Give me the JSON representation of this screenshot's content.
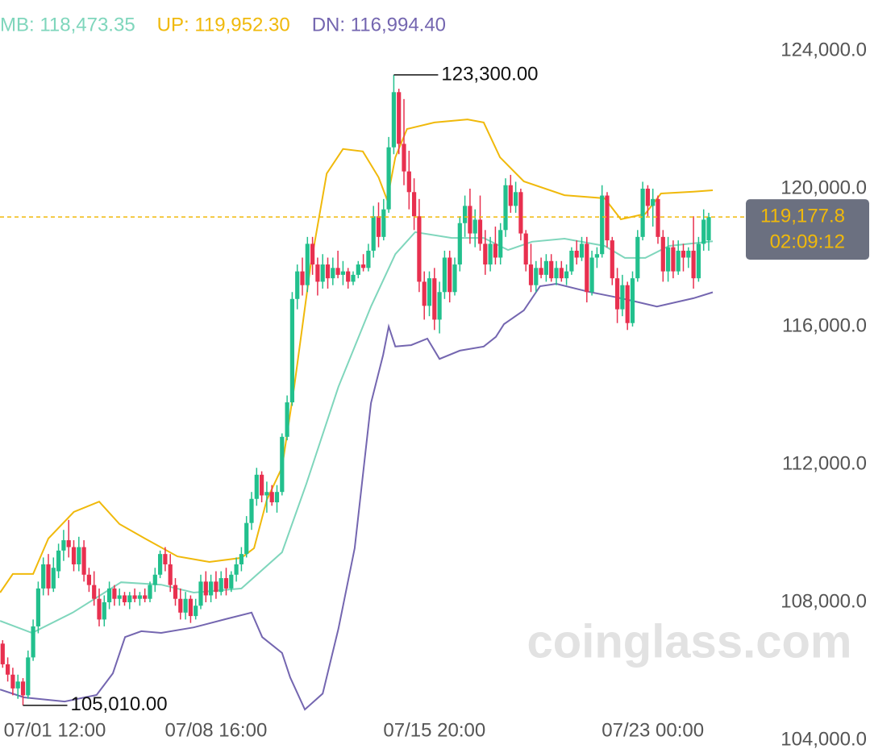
{
  "chart_data": {
    "type": "candlestick",
    "up_color": "#22c08d",
    "down_color": "#e8304f",
    "open": [
      107000,
      106800,
      106200,
      105900,
      105500,
      105700,
      105300,
      106400,
      107300,
      108400,
      109100,
      108400,
      108900,
      109500,
      109800,
      109600,
      109100,
      109600,
      108800,
      108500,
      108100,
      107500,
      108000,
      108400,
      108100,
      108200,
      108000,
      108200,
      108100,
      108200,
      108100,
      108500,
      108800,
      109400,
      109100,
      108500,
      108100,
      107700,
      108100,
      107600,
      107900,
      108600,
      108200,
      108600,
      108300,
      108700,
      108400,
      108800,
      109100,
      109400,
      110300,
      111000,
      111700,
      111100,
      111200,
      110900,
      111200,
      112800,
      113800,
      116800,
      117600,
      117200,
      118400,
      117800,
      117300,
      117800,
      117400,
      117700,
      117500,
      117600,
      117300,
      117500,
      117800,
      117700,
      118200,
      119200,
      118600,
      119400,
      121200,
      122800,
      121300,
      120500,
      119900,
      119200,
      117300,
      116600,
      117400,
      116200,
      117000,
      118000,
      117000,
      117800,
      119000,
      119500,
      118700,
      119100,
      118400,
      117800,
      118400,
      118000,
      118800,
      120100,
      119500,
      119900,
      118700,
      117800,
      117200,
      117700,
      117500,
      117900,
      117400,
      117700,
      117400,
      117600,
      118200,
      118000,
      118400,
      117000,
      118000,
      118100,
      119800,
      118500,
      117400,
      116500,
      117200,
      116100,
      117400,
      118600,
      120000,
      119500,
      119700,
      118600,
      117600,
      118300,
      117600,
      118200,
      118000,
      118200,
      117400,
      118400,
      118500
    ],
    "high": [
      107200,
      106900,
      106400,
      106100,
      105900,
      105800,
      106600,
      107500,
      108600,
      109300,
      109400,
      109300,
      109700,
      110100,
      110390,
      109800,
      109900,
      109800,
      109000,
      108900,
      108400,
      108200,
      108600,
      108500,
      108400,
      108300,
      108300,
      108400,
      108300,
      108400,
      108600,
      109000,
      109500,
      109600,
      109400,
      108700,
      108400,
      108300,
      108200,
      108100,
      108800,
      108900,
      108800,
      108900,
      108900,
      109000,
      108900,
      109300,
      109600,
      110500,
      111200,
      111900,
      111800,
      111500,
      111400,
      111400,
      112900,
      114000,
      117000,
      117800,
      118000,
      118600,
      118600,
      118000,
      118100,
      118000,
      118000,
      118200,
      117900,
      117700,
      117600,
      117900,
      118100,
      118400,
      119500,
      119600,
      119700,
      121500,
      123300,
      122900,
      122600,
      121100,
      120300,
      119700,
      117600,
      117600,
      117700,
      117300,
      118200,
      118200,
      118000,
      119200,
      119800,
      120000,
      119400,
      119800,
      118800,
      118600,
      118900,
      119000,
      120300,
      120400,
      120200,
      120000,
      118800,
      118400,
      117900,
      118000,
      118100,
      118100,
      117900,
      117900,
      117800,
      118300,
      118500,
      118600,
      118600,
      118200,
      118300,
      120100,
      119900,
      118600,
      117700,
      117500,
      117300,
      117600,
      118800,
      120200,
      120100,
      120000,
      119800,
      118800,
      118600,
      118500,
      118500,
      118400,
      118300,
      119200,
      118600,
      119400,
      119300
    ],
    "low": [
      106600,
      106100,
      105700,
      105300,
      105200,
      105010,
      105200,
      106300,
      107100,
      108200,
      108200,
      108300,
      108700,
      109200,
      109300,
      108900,
      108900,
      108600,
      108300,
      107900,
      107300,
      107300,
      107800,
      107900,
      107900,
      107900,
      107800,
      108000,
      107900,
      108000,
      108000,
      108300,
      108700,
      108900,
      108300,
      107900,
      107500,
      107500,
      107400,
      107500,
      107800,
      108000,
      108000,
      108100,
      108200,
      108200,
      108300,
      108600,
      108900,
      109300,
      110100,
      110800,
      110900,
      110600,
      110800,
      110600,
      111100,
      112700,
      113700,
      116500,
      116900,
      117000,
      117500,
      116900,
      117100,
      117100,
      117200,
      117400,
      117200,
      117100,
      117200,
      117400,
      117600,
      117600,
      118000,
      118300,
      118500,
      119300,
      121000,
      121000,
      120100,
      119400,
      118800,
      117000,
      116200,
      116300,
      115900,
      115800,
      116800,
      116700,
      116900,
      117600,
      118600,
      118400,
      118300,
      118200,
      117500,
      117600,
      117800,
      117800,
      118600,
      119300,
      119300,
      118500,
      117600,
      117000,
      117000,
      117400,
      117300,
      117300,
      117200,
      117300,
      117200,
      117500,
      117800,
      117900,
      116700,
      116900,
      117700,
      118000,
      118300,
      117200,
      116100,
      116300,
      115900,
      116000,
      117300,
      118500,
      119200,
      118900,
      118400,
      117300,
      117300,
      117400,
      117500,
      117600,
      117700,
      117100,
      117300,
      118200,
      118200
    ],
    "close": [
      106800,
      106200,
      105900,
      105500,
      105700,
      105300,
      106400,
      107300,
      108400,
      109100,
      108400,
      109000,
      109500,
      109800,
      109600,
      109100,
      109600,
      108800,
      108500,
      108100,
      107500,
      108000,
      108400,
      108100,
      108200,
      108000,
      108200,
      108100,
      108200,
      108100,
      108500,
      108800,
      109400,
      109100,
      108500,
      108100,
      107700,
      108100,
      107600,
      107900,
      108600,
      108200,
      108600,
      108300,
      108700,
      108400,
      108800,
      109100,
      109400,
      110300,
      111000,
      111700,
      111100,
      111200,
      110900,
      111200,
      112800,
      113800,
      116800,
      117600,
      117200,
      118400,
      117800,
      117300,
      117800,
      117400,
      117700,
      117500,
      117600,
      117300,
      117500,
      117800,
      117700,
      118200,
      119200,
      118600,
      119400,
      121200,
      122800,
      121300,
      120500,
      119900,
      119200,
      117300,
      116600,
      117400,
      116200,
      117000,
      118000,
      117000,
      117800,
      119000,
      119500,
      118700,
      119100,
      118400,
      117800,
      118400,
      118000,
      118800,
      120100,
      119500,
      119900,
      118700,
      117800,
      117200,
      117700,
      117500,
      117900,
      117400,
      117700,
      117400,
      117600,
      118200,
      118000,
      118400,
      117000,
      118000,
      118100,
      119800,
      118500,
      117400,
      116500,
      117200,
      116100,
      117400,
      118600,
      120000,
      119500,
      119700,
      118600,
      117600,
      118300,
      117600,
      118200,
      118000,
      118200,
      117400,
      118400,
      119100,
      119177.8
    ],
    "series": [
      {
        "name": "MB: 118,473.35",
        "color": "#7fd6bc",
        "x": [
          0.5,
          6.8,
          14.8,
          24.3,
          32.2,
          38.6,
          48,
          56,
          60.8,
          67.1,
          73.5,
          78.3,
          82.2,
          89.4,
          95.7,
          100.5,
          105.2,
          111.6,
          119.5,
          123.5,
          127.5,
          132.2,
          140.8
        ],
        "values": [
          107460,
          107110,
          107700,
          108580,
          108510,
          108280,
          108400,
          109450,
          111440,
          114250,
          116580,
          118100,
          118740,
          118570,
          118570,
          118220,
          118460,
          118550,
          118340,
          117990,
          117990,
          118340,
          118473.35
        ]
      },
      {
        "name": "UP: 119,952.30",
        "color": "#f0b90b",
        "x": [
          0.5,
          3,
          7,
          10,
          15,
          20,
          24,
          29,
          35.4,
          41.7,
          48,
          50.5,
          53,
          56,
          58.4,
          61.6,
          64.8,
          68,
          71.9,
          75,
          76.7,
          78.3,
          80.6,
          86,
          92.5,
          95.7,
          98.9,
          103.6,
          111.6,
          119.5,
          122.7,
          127.5,
          130.6,
          137,
          140.8
        ],
        "values": [
          108280,
          108820,
          108820,
          109850,
          110620,
          110920,
          110270,
          109850,
          109330,
          109170,
          109290,
          109570,
          110970,
          111910,
          114250,
          117750,
          120440,
          121150,
          121080,
          120330,
          119670,
          120910,
          121730,
          121920,
          122010,
          121920,
          120910,
          120210,
          119810,
          119720,
          119110,
          119270,
          119860,
          119910,
          119952.3
        ]
      },
      {
        "name": "DN: 116,994.40",
        "color": "#7466b0",
        "x": [
          0.5,
          5.2,
          13.2,
          19.5,
          22.7,
          25.1,
          28.3,
          32.2,
          38.6,
          44.9,
          50,
          52.1,
          56,
          57.6,
          60.5,
          64,
          67.1,
          70.3,
          73.5,
          75.9,
          77,
          78.3,
          81.4,
          84.6,
          87,
          91,
          95.7,
          98.1,
          99.7,
          103.6,
          106.8,
          110,
          116.3,
          121.1,
          124.3,
          129.8,
          137,
          140.8
        ],
        "values": [
          105470,
          105240,
          105120,
          105310,
          105940,
          106990,
          107160,
          107110,
          107270,
          107510,
          107700,
          106990,
          106530,
          105820,
          104890,
          105350,
          107230,
          109570,
          113780,
          115180,
          116000,
          115420,
          115460,
          115650,
          115060,
          115300,
          115420,
          115700,
          116070,
          116470,
          117170,
          117240,
          117010,
          116870,
          116770,
          116580,
          116820,
          116994.4
        ]
      }
    ],
    "ylim": [
      104000,
      124000
    ],
    "yticks": [
      {
        "value": 104000,
        "label": "104,000.0"
      },
      {
        "value": 108000,
        "label": "108,000.0"
      },
      {
        "value": 112000,
        "label": "112,000.0"
      },
      {
        "value": 116000,
        "label": "116,000.0"
      },
      {
        "value": 120000,
        "label": "120,000.0"
      },
      {
        "value": 124000,
        "label": "124,000.0"
      }
    ],
    "xticks": [
      {
        "value": 0,
        "label": "07/01 12:00"
      },
      {
        "value": 43,
        "label": "07/08 16:00"
      },
      {
        "value": 86,
        "label": "07/15 20:00"
      },
      {
        "value": 129,
        "label": "07/23 00:00"
      }
    ],
    "annotations": [
      {
        "label": "123,300.00",
        "value": 123300,
        "x": 78
      },
      {
        "label": "105,010.00",
        "value": 105010,
        "x": 5
      }
    ],
    "last_price": {
      "value": 119177.8,
      "label": "119,177.8"
    },
    "countdown": "02:09:12",
    "watermark": "coinglass.com"
  }
}
